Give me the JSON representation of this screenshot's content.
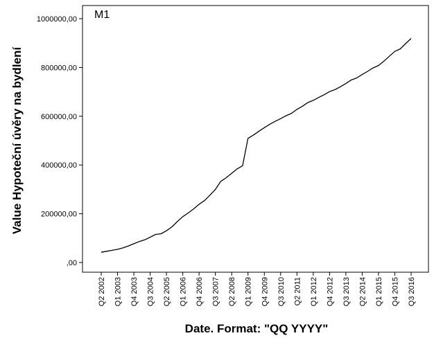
{
  "chart_data": {
    "type": "line",
    "panel_label": "M1",
    "xlabel": "Date.  Format:  \"QQ YYYY\"",
    "ylabel": "Value Hypoteční úvěry na bydlení",
    "ylim": [
      0,
      1000000
    ],
    "y_ticks": [
      0,
      200000,
      400000,
      600000,
      800000,
      1000000
    ],
    "y_tick_labels": [
      ",00",
      "200000,00",
      "400000,00",
      "600000,00",
      "800000,00",
      "1000000,00"
    ],
    "grid": false,
    "x_tick_labels": [
      "Q2 2002",
      "Q1 2003",
      "Q4 2003",
      "Q3 2004",
      "Q2 2005",
      "Q1 2006",
      "Q4 2006",
      "Q3 2007",
      "Q2 2008",
      "Q1 2009",
      "Q4 2009",
      "Q3 2010",
      "Q2 2011",
      "Q1 2012",
      "Q4 2012",
      "Q3 2013",
      "Q2 2014",
      "Q1 2015",
      "Q4 2015",
      "Q3 2016"
    ],
    "x": [
      "Q2 2002",
      "Q3 2002",
      "Q4 2002",
      "Q1 2003",
      "Q2 2003",
      "Q3 2003",
      "Q4 2003",
      "Q1 2004",
      "Q2 2004",
      "Q3 2004",
      "Q4 2004",
      "Q1 2005",
      "Q2 2005",
      "Q3 2005",
      "Q4 2005",
      "Q1 2006",
      "Q2 2006",
      "Q3 2006",
      "Q4 2006",
      "Q1 2007",
      "Q2 2007",
      "Q3 2007",
      "Q4 2007",
      "Q1 2008",
      "Q2 2008",
      "Q3 2008",
      "Q4 2008",
      "Q1 2009",
      "Q2 2009",
      "Q3 2009",
      "Q4 2009",
      "Q1 2010",
      "Q2 2010",
      "Q3 2010",
      "Q4 2010",
      "Q1 2011",
      "Q2 2011",
      "Q3 2011",
      "Q4 2011",
      "Q1 2012",
      "Q2 2012",
      "Q3 2012",
      "Q4 2012",
      "Q1 2013",
      "Q2 2013",
      "Q3 2013",
      "Q4 2013",
      "Q1 2014",
      "Q2 2014",
      "Q3 2014",
      "Q4 2014",
      "Q1 2015",
      "Q2 2015",
      "Q3 2015",
      "Q4 2015",
      "Q1 2016",
      "Q2 2016",
      "Q3 2016"
    ],
    "series": [
      {
        "values": [
          42000,
          46000,
          50000,
          54000,
          60000,
          68000,
          77000,
          86000,
          93000,
          104000,
          115000,
          118000,
          130000,
          146000,
          168000,
          188000,
          203000,
          220000,
          239000,
          254000,
          276000,
          300000,
          333000,
          348000,
          366000,
          384000,
          397000,
          509000,
          523000,
          538000,
          553000,
          567000,
          579000,
          590000,
          602000,
          612000,
          628000,
          641000,
          656000,
          665000,
          677000,
          688000,
          701000,
          709000,
          721000,
          734000,
          749000,
          757000,
          771000,
          784000,
          798000,
          808000,
          826000,
          846000,
          866000,
          876000,
          898000,
          919000
        ]
      }
    ]
  }
}
